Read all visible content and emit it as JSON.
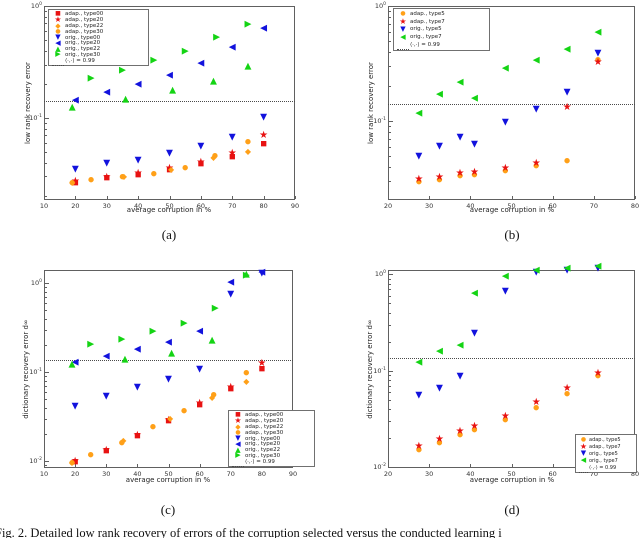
{
  "figure": {
    "caption_fragment": "Fig. 2. Detailed low rank recovery of errors of the corruption selected versus the conducted learning i"
  },
  "colors": {
    "red": "#e81212",
    "orange": "#ffa018",
    "blue": "#1212dd",
    "green": "#14d414",
    "threshold": "#4a4a4a"
  },
  "chart_data": [
    {
      "id": "a",
      "label": "(a)",
      "type": "scatter",
      "xlabel": "average corruption in %",
      "ylabel": "low rank recovery error",
      "xlim": [
        10,
        90
      ],
      "xticks": [
        10,
        20,
        30,
        40,
        50,
        60,
        70,
        80,
        90
      ],
      "ylog": true,
      "ylim": [
        0.0185,
        1.0
      ],
      "ydecades": [
        0,
        -1
      ],
      "grid": false,
      "threshold_value": 0.142,
      "threshold_label": "⟨·,·⟩ = 0.99",
      "legend_position": "top-left",
      "series": [
        {
          "name": "adap., type00",
          "marker": "square",
          "color": "red",
          "points": [
            [
              20,
              0.0265
            ],
            [
              30,
              0.029
            ],
            [
              40,
              0.031
            ],
            [
              50,
              0.034
            ],
            [
              60,
              0.039
            ],
            [
              70,
              0.0445
            ],
            [
              80,
              0.059
            ]
          ]
        },
        {
          "name": "adap., type20",
          "marker": "star",
          "color": "red",
          "points": [
            [
              20,
              0.027
            ],
            [
              30,
              0.029
            ],
            [
              40,
              0.0315
            ],
            [
              50,
              0.035
            ],
            [
              60,
              0.04
            ],
            [
              70,
              0.048
            ],
            [
              80,
              0.0685
            ]
          ]
        },
        {
          "name": "adap., type22",
          "marker": "diamond",
          "color": "orange",
          "points": [
            [
              19,
              0.026
            ],
            [
              35.5,
              0.0295
            ],
            [
              50.5,
              0.0345
            ],
            [
              64,
              0.0435
            ],
            [
              75,
              0.0495
            ]
          ]
        },
        {
          "name": "adap., type30",
          "marker": "circle",
          "color": "orange",
          "points": [
            [
              19,
              0.0265
            ],
            [
              25,
              0.028
            ],
            [
              35,
              0.0295
            ],
            [
              45,
              0.0315
            ],
            [
              55,
              0.036
            ],
            [
              64.5,
              0.046
            ],
            [
              75,
              0.061
            ]
          ]
        },
        {
          "name": "orig., type00",
          "marker": "tri-down",
          "color": "blue",
          "points": [
            [
              20,
              0.0345
            ],
            [
              30,
              0.0385
            ],
            [
              40,
              0.041
            ],
            [
              50,
              0.0475
            ],
            [
              60,
              0.0555
            ],
            [
              70,
              0.066
            ],
            [
              80,
              0.1
            ]
          ]
        },
        {
          "name": "orig., type20",
          "marker": "tri-left",
          "color": "blue",
          "points": [
            [
              20,
              0.141
            ],
            [
              30,
              0.166
            ],
            [
              40,
              0.197
            ],
            [
              50,
              0.237
            ],
            [
              60,
              0.303
            ],
            [
              70,
              0.42
            ],
            [
              80,
              0.62
            ]
          ]
        },
        {
          "name": "orig., type22",
          "marker": "tri-up",
          "color": "green",
          "points": [
            [
              19,
              0.123
            ],
            [
              36,
              0.146
            ],
            [
              51,
              0.173
            ],
            [
              64,
              0.209
            ],
            [
              75,
              0.283
            ]
          ]
        },
        {
          "name": "orig., type30",
          "marker": "tri-right",
          "color": "green",
          "points": [
            [
              25,
              0.224
            ],
            [
              35,
              0.263
            ],
            [
              45,
              0.32
            ],
            [
              55,
              0.385
            ],
            [
              65,
              0.52
            ],
            [
              75,
              0.67
            ]
          ]
        }
      ]
    },
    {
      "id": "b",
      "label": "(b)",
      "type": "scatter",
      "xlabel": "average corruption in %",
      "ylabel": "low rank recovery error",
      "xlim": [
        20,
        80
      ],
      "xticks": [
        20,
        30,
        40,
        50,
        60,
        70,
        80
      ],
      "ylog": true,
      "ylim": [
        0.0206,
        1.0
      ],
      "ydecades": [
        0,
        -1
      ],
      "grid": false,
      "threshold_value": 0.142,
      "threshold_label": "⟨·,·⟩ = 0.99",
      "legend_position": "top-left",
      "series": [
        {
          "name": "adap., type5",
          "marker": "circle",
          "color": "orange",
          "points": [
            [
              27.5,
              0.0295
            ],
            [
              32.5,
              0.0305
            ],
            [
              37.5,
              0.033
            ],
            [
              41,
              0.034
            ],
            [
              48.5,
              0.037
            ],
            [
              56,
              0.0405
            ],
            [
              63.5,
              0.0448
            ],
            [
              71,
              0.338
            ]
          ]
        },
        {
          "name": "adap., type7",
          "marker": "star",
          "color": "red",
          "points": [
            [
              27.5,
              0.031
            ],
            [
              32.5,
              0.032
            ],
            [
              37.5,
              0.0345
            ],
            [
              41,
              0.0355
            ],
            [
              48.5,
              0.038
            ],
            [
              56,
              0.042
            ],
            [
              63.5,
              0.13
            ],
            [
              71,
              0.322
            ]
          ]
        },
        {
          "name": "orig., type5",
          "marker": "tri-down",
          "color": "blue",
          "points": [
            [
              27.5,
              0.049
            ],
            [
              32.5,
              0.059
            ],
            [
              37.5,
              0.0715
            ],
            [
              41,
              0.062
            ],
            [
              48.5,
              0.096
            ],
            [
              56,
              0.124
            ],
            [
              63.5,
              0.175
            ],
            [
              71,
              0.385
            ]
          ]
        },
        {
          "name": "orig., type7",
          "marker": "tri-left",
          "color": "green",
          "points": [
            [
              27.5,
              0.116
            ],
            [
              32.5,
              0.169
            ],
            [
              37.5,
              0.216
            ],
            [
              41,
              0.154
            ],
            [
              48.5,
              0.281
            ],
            [
              56,
              0.333
            ],
            [
              63.5,
              0.411
            ],
            [
              71,
              0.587
            ]
          ]
        }
      ]
    },
    {
      "id": "c",
      "label": "(c)",
      "type": "scatter",
      "xlabel": "average corruption in %",
      "ylabel": "dictionary recovery error d∞",
      "xlim": [
        10,
        90
      ],
      "xticks": [
        10,
        20,
        30,
        40,
        50,
        60,
        70,
        80,
        90
      ],
      "ylog": true,
      "ylim": [
        0.0084,
        1.41
      ],
      "ydecades": [
        0,
        -1,
        -2
      ],
      "grid": false,
      "threshold_value": 0.136,
      "threshold_label": "⟨·,·⟩ = 0.99",
      "legend_position": "bottom-right",
      "series": [
        {
          "name": "adap., type00",
          "marker": "square",
          "color": "red",
          "points": [
            [
              20,
              0.0098
            ],
            [
              30,
              0.0131
            ],
            [
              40,
              0.019
            ],
            [
              50,
              0.028
            ],
            [
              60,
              0.043
            ],
            [
              70,
              0.065
            ],
            [
              80,
              0.108
            ]
          ]
        },
        {
          "name": "adap., type20",
          "marker": "star",
          "color": "red",
          "points": [
            [
              20,
              0.0099
            ],
            [
              30,
              0.0132
            ],
            [
              40,
              0.019
            ],
            [
              50,
              0.0285
            ],
            [
              60,
              0.044
            ],
            [
              70,
              0.066
            ],
            [
              80,
              0.125
            ]
          ]
        },
        {
          "name": "adap., type22",
          "marker": "diamond",
          "color": "orange",
          "points": [
            [
              19,
              0.0095
            ],
            [
              35.5,
              0.0168
            ],
            [
              50.5,
              0.0295
            ],
            [
              64,
              0.051
            ],
            [
              75,
              0.078
            ]
          ]
        },
        {
          "name": "adap., type30",
          "marker": "circle",
          "color": "orange",
          "points": [
            [
              19,
              0.0096
            ],
            [
              25,
              0.0118
            ],
            [
              35,
              0.0162
            ],
            [
              45,
              0.024
            ],
            [
              55,
              0.037
            ],
            [
              64.5,
              0.056
            ],
            [
              75,
              0.097
            ]
          ]
        },
        {
          "name": "orig., type00",
          "marker": "tri-down",
          "color": "blue",
          "points": [
            [
              20,
              0.041
            ],
            [
              30,
              0.053
            ],
            [
              40,
              0.066
            ],
            [
              50,
              0.081
            ],
            [
              60,
              0.105
            ],
            [
              70,
              0.74
            ],
            [
              80,
              1.28
            ]
          ]
        },
        {
          "name": "orig., type20",
          "marker": "tri-left",
          "color": "blue",
          "points": [
            [
              20,
              0.128
            ],
            [
              30,
              0.148
            ],
            [
              40,
              0.178
            ],
            [
              50,
              0.215
            ],
            [
              60,
              0.285
            ],
            [
              70,
              1.02
            ],
            [
              80,
              1.3
            ]
          ]
        },
        {
          "name": "orig., type22",
          "marker": "tri-up",
          "color": "green",
          "points": [
            [
              19,
              0.121
            ],
            [
              36,
              0.136
            ],
            [
              51,
              0.16
            ],
            [
              64,
              0.225
            ],
            [
              75,
              1.25
            ]
          ]
        },
        {
          "name": "orig., type30",
          "marker": "tri-right",
          "color": "green",
          "points": [
            [
              25,
              0.2
            ],
            [
              35,
              0.23
            ],
            [
              45,
              0.28
            ],
            [
              55,
              0.35
            ],
            [
              65,
              0.52
            ],
            [
              75,
              1.22
            ]
          ]
        }
      ]
    },
    {
      "id": "d",
      "label": "(d)",
      "type": "scatter",
      "xlabel": "average corruption in %",
      "ylabel": "dictionary recovery error d∞",
      "xlim": [
        20,
        80
      ],
      "xticks": [
        20,
        30,
        40,
        50,
        60,
        70,
        80
      ],
      "ylog": true,
      "ylim": [
        0.0098,
        1.106
      ],
      "ydecades": [
        0,
        -1,
        -2
      ],
      "grid": false,
      "threshold_value": 0.136,
      "threshold_label": "⟨·,·⟩ = 0.99",
      "legend_position": "bottom-right",
      "series": [
        {
          "name": "adap., type5",
          "marker": "circle",
          "color": "orange",
          "points": [
            [
              27.5,
              0.015
            ],
            [
              32.5,
              0.0178
            ],
            [
              37.5,
              0.0215
            ],
            [
              41,
              0.0245
            ],
            [
              48.5,
              0.0305
            ],
            [
              56,
              0.0415
            ],
            [
              63.5,
              0.058
            ],
            [
              71,
              0.0885
            ]
          ]
        },
        {
          "name": "adap., type7",
          "marker": "star",
          "color": "red",
          "points": [
            [
              27.5,
              0.016
            ],
            [
              32.5,
              0.019
            ],
            [
              37.5,
              0.023
            ],
            [
              41,
              0.026
            ],
            [
              48.5,
              0.033
            ],
            [
              56,
              0.046
            ],
            [
              63.5,
              0.064
            ],
            [
              71,
              0.093
            ]
          ]
        },
        {
          "name": "orig., type5",
          "marker": "tri-down",
          "color": "blue",
          "points": [
            [
              27.5,
              0.055
            ],
            [
              32.5,
              0.065
            ],
            [
              37.5,
              0.087
            ],
            [
              41,
              0.24
            ],
            [
              48.5,
              0.65
            ],
            [
              56,
              1.02
            ],
            [
              63.5,
              1.08
            ],
            [
              71,
              1.13
            ]
          ]
        },
        {
          "name": "orig., type7",
          "marker": "tri-left",
          "color": "green",
          "points": [
            [
              27.5,
              0.12
            ],
            [
              32.5,
              0.155
            ],
            [
              37.5,
              0.18
            ],
            [
              41,
              0.62
            ],
            [
              48.5,
              0.93
            ],
            [
              56,
              1.08
            ],
            [
              63.5,
              1.12
            ],
            [
              71,
              1.18
            ]
          ]
        }
      ]
    }
  ]
}
